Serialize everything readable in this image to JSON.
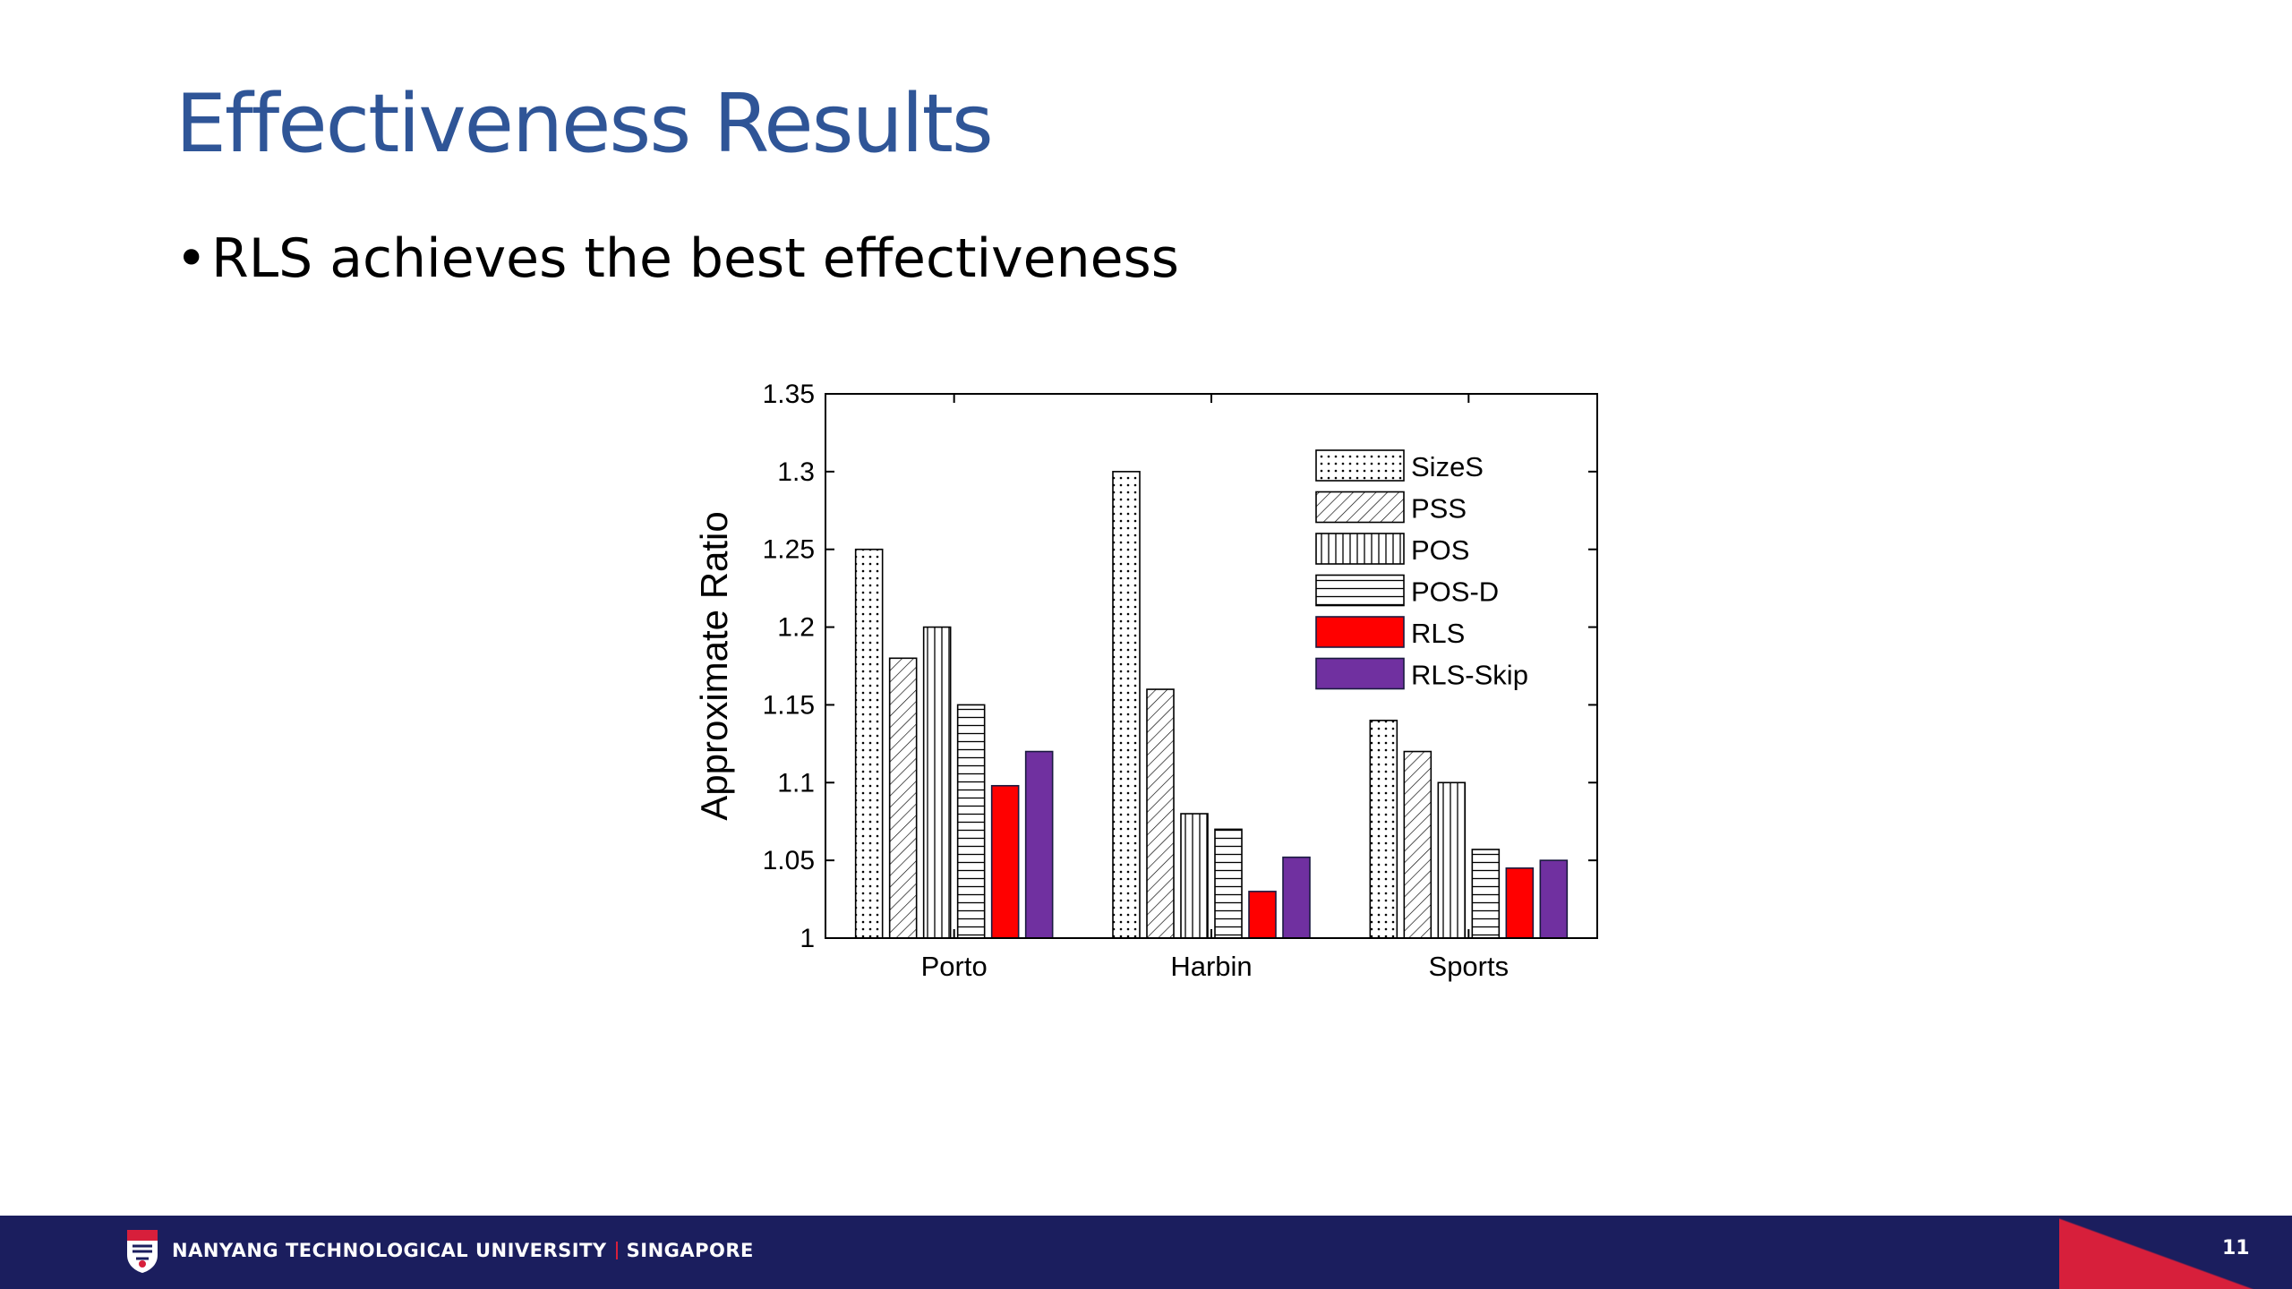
{
  "slide": {
    "title": "Effectiveness Results",
    "bullet": "RLS achieves the best effectiveness",
    "page_number": "11"
  },
  "footer": {
    "org_name": "NANYANG TECHNOLOGICAL UNIVERSITY",
    "org_location": "SINGAPORE",
    "logo_icon": "ntu-crest-icon",
    "background_color": "#1b1e5e",
    "accent_color": "#d71f3b"
  },
  "chart_data": {
    "type": "bar",
    "title": "",
    "xlabel": "",
    "ylabel": "Approximate Ratio",
    "ylim": [
      1,
      1.35
    ],
    "yticks": [
      "1",
      "1.05",
      "1.1",
      "1.15",
      "1.2",
      "1.25",
      "1.3",
      "1.35"
    ],
    "grid": false,
    "legend_position": "top-right",
    "categories": [
      "Porto",
      "Harbin",
      "Sports"
    ],
    "series": [
      {
        "name": "SizeS",
        "pattern": "dots",
        "color": "#ffffff",
        "values": [
          1.25,
          1.3,
          1.14
        ]
      },
      {
        "name": "PSS",
        "pattern": "diagonal",
        "color": "#ffffff",
        "values": [
          1.18,
          1.16,
          1.12
        ]
      },
      {
        "name": "POS",
        "pattern": "vertical",
        "color": "#ffffff",
        "values": [
          1.2,
          1.08,
          1.1
        ]
      },
      {
        "name": "POS-D",
        "pattern": "horizontal",
        "color": "#ffffff",
        "values": [
          1.15,
          1.07,
          1.057
        ]
      },
      {
        "name": "RLS",
        "pattern": "solid",
        "color": "#ff0000",
        "values": [
          1.098,
          1.03,
          1.045
        ]
      },
      {
        "name": "RLS-Skip",
        "pattern": "solid",
        "color": "#7030a0",
        "values": [
          1.12,
          1.052,
          1.05
        ]
      }
    ]
  }
}
